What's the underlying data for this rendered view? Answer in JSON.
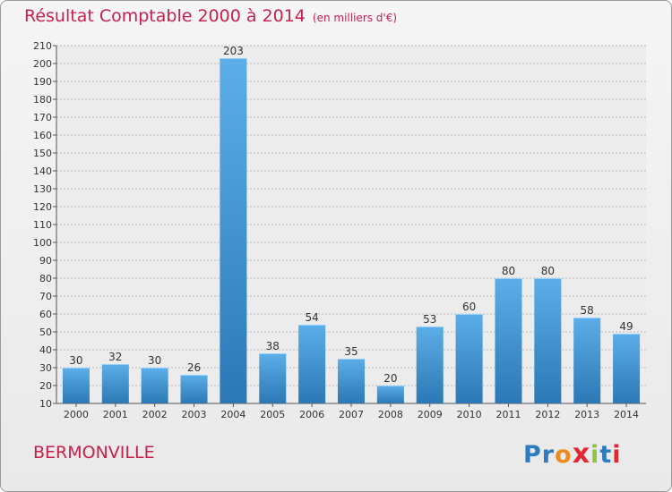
{
  "header": {
    "title": "Résultat Comptable 2000 à 2014",
    "unit": "(en milliers d'€)"
  },
  "footer": {
    "commune": "BERMONVILLE",
    "logo_letters": [
      "P",
      "r",
      "o",
      "x",
      "i",
      "t",
      "i"
    ]
  },
  "colors": {
    "title": "#c8204d",
    "bar_top": "#5caee8",
    "bar_bottom": "#2b78b5",
    "logo": [
      "#2d7bc0",
      "#2d7bc0",
      "#f08a1e",
      "#e3262f",
      "#8cc63f",
      "#2d7bc0",
      "#e3262f"
    ]
  },
  "chart_data": {
    "type": "bar",
    "categories": [
      "2000",
      "2001",
      "2002",
      "2003",
      "2004",
      "2005",
      "2006",
      "2007",
      "2008",
      "2009",
      "2010",
      "2011",
      "2012",
      "2013",
      "2014"
    ],
    "values": [
      30,
      32,
      30,
      26,
      203,
      38,
      54,
      35,
      20,
      53,
      60,
      80,
      80,
      58,
      49
    ],
    "ylim": [
      10,
      210
    ],
    "yticks": [
      10,
      20,
      30,
      40,
      50,
      60,
      70,
      80,
      90,
      100,
      110,
      120,
      130,
      140,
      150,
      160,
      170,
      180,
      190,
      200,
      210
    ],
    "grid": true,
    "data_labels": true
  }
}
